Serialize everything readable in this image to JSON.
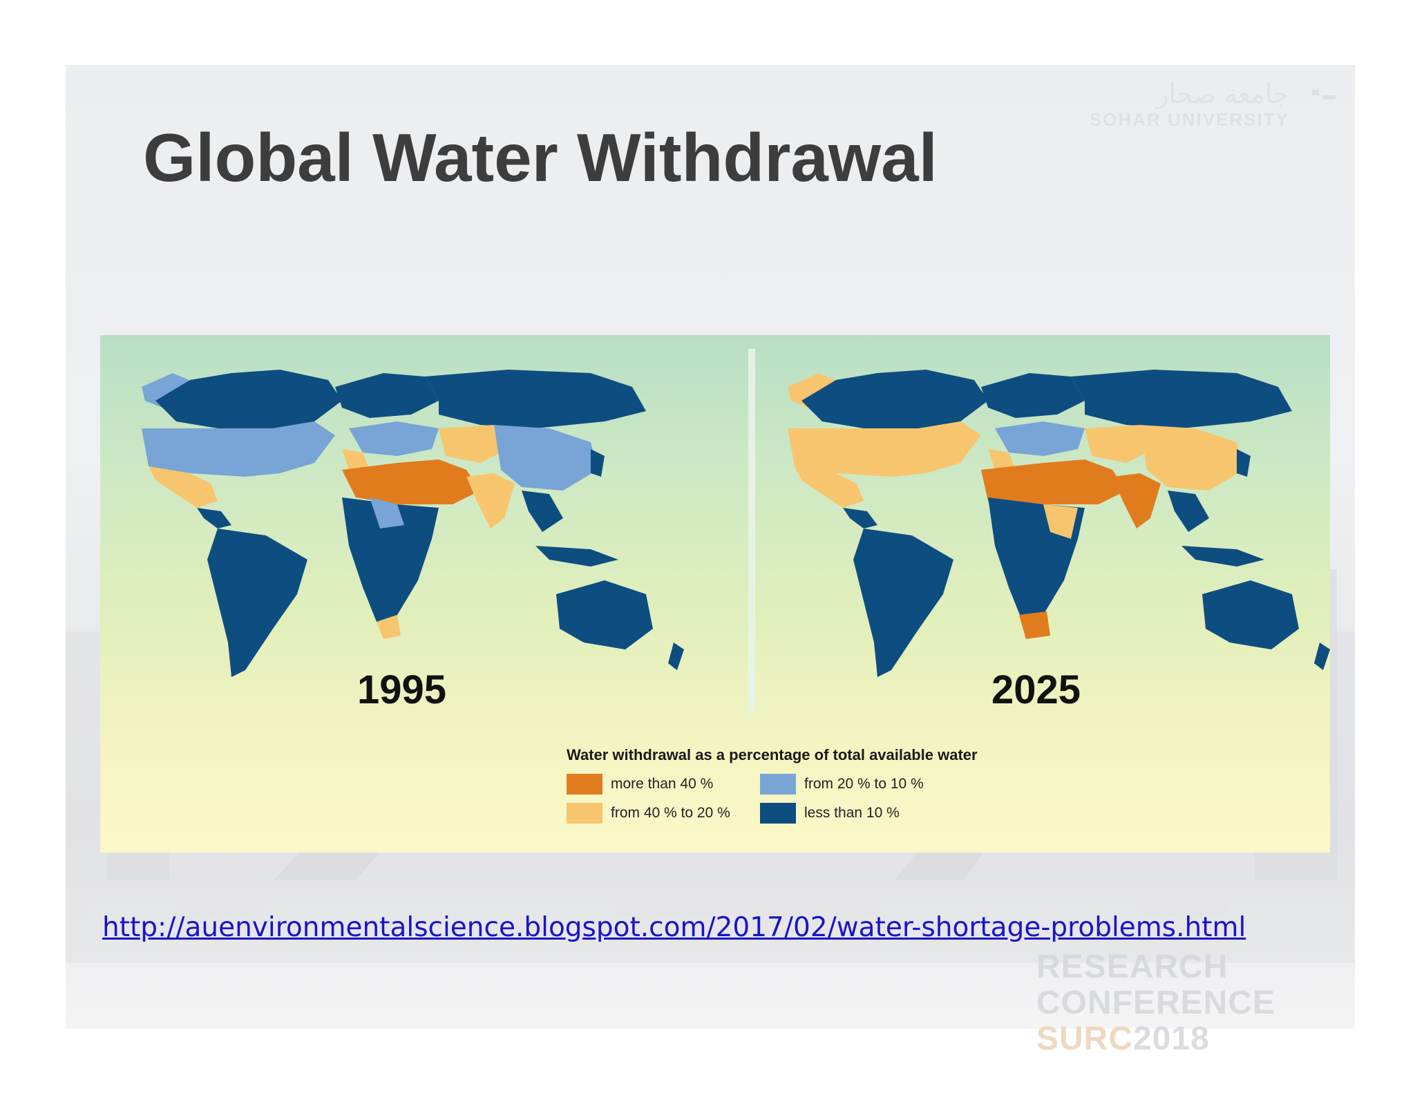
{
  "slide": {
    "title": "Global Water Withdrawal",
    "watermark": {
      "arabic": "جامعة صحار",
      "latin": "SOHAR UNIVERSITY",
      "conference_line1": "RESEARCH CONFERENCE",
      "conference_line2_a": "SURC",
      "conference_line2_b": "2018"
    },
    "source_url": "http://auenvironmentalscience.blogspot.com/2017/02/water-shortage-problems.html"
  },
  "figure": {
    "maps": [
      {
        "year": "1995"
      },
      {
        "year": "2025"
      }
    ],
    "legend": {
      "title": "Water withdrawal as a percentage of total available water",
      "items": [
        {
          "label": "more than 40 %",
          "color": "#e07c1e"
        },
        {
          "label": "from 20 % to 10 %",
          "color": "#78a4d6"
        },
        {
          "label": "from 40 % to 20 %",
          "color": "#f7c56e"
        },
        {
          "label": "less than 10 %",
          "color": "#0e4d80"
        }
      ]
    }
  }
}
